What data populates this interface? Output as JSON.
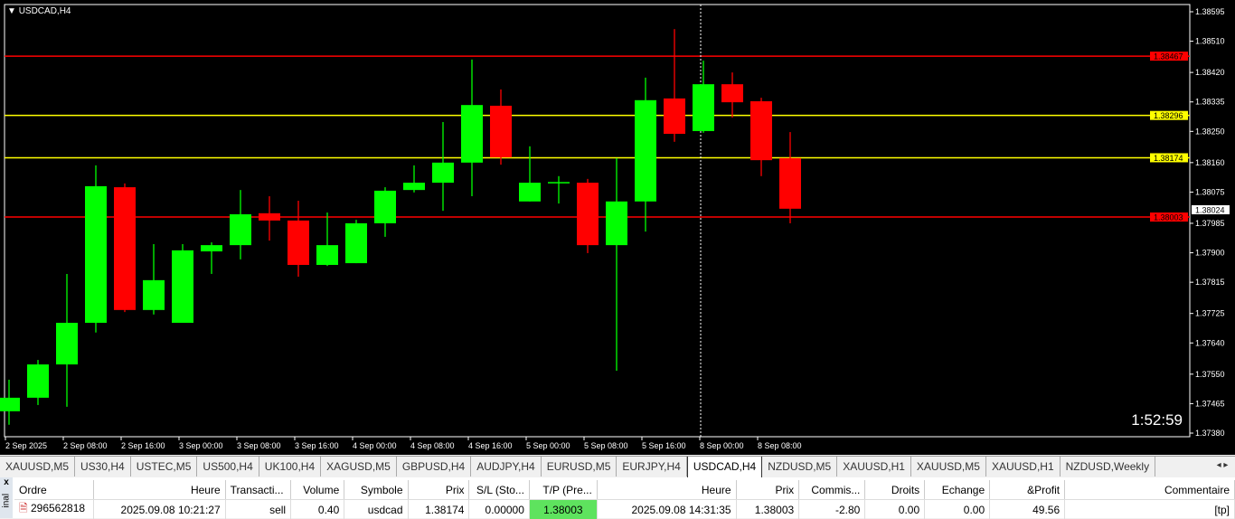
{
  "chart": {
    "title": "USDCAD,H4",
    "timer": "1:52:59",
    "colors": {
      "bull": "#00ff00",
      "bear": "#ff0000",
      "background": "#000000",
      "level_red": "#ff0000",
      "level_yellow": "#ffff00"
    },
    "crosshair_time": "8 Sep 00:00"
  },
  "chart_data": {
    "type": "candlestick",
    "symbol": "USDCAD",
    "timeframe": "H4",
    "ylim": [
      1.3738,
      1.38595
    ],
    "yticks": [
      "1.38595",
      "1.38510",
      "1.38420",
      "1.38335",
      "1.38250",
      "1.38160",
      "1.38075",
      "1.37985",
      "1.37900",
      "1.37815",
      "1.37725",
      "1.37640",
      "1.37550",
      "1.37465",
      "1.37380"
    ],
    "xticks": [
      "2 Sep 2025",
      "2 Sep 08:00",
      "2 Sep 16:00",
      "3 Sep 00:00",
      "3 Sep 08:00",
      "3 Sep 16:00",
      "4 Sep 00:00",
      "4 Sep 08:00",
      "4 Sep 16:00",
      "5 Sep 00:00",
      "5 Sep 08:00",
      "5 Sep 16:00",
      "8 Sep 00:00",
      "8 Sep 08:00"
    ],
    "candles": [
      {
        "o": 1.37443,
        "h": 1.37534,
        "l": 1.37404,
        "c": 1.37482
      },
      {
        "o": 1.37482,
        "h": 1.37591,
        "l": 1.37461,
        "c": 1.37578
      },
      {
        "o": 1.37578,
        "h": 1.37839,
        "l": 1.37456,
        "c": 1.37698
      },
      {
        "o": 1.37698,
        "h": 1.38152,
        "l": 1.3767,
        "c": 1.38092
      },
      {
        "o": 1.38089,
        "h": 1.381,
        "l": 1.37729,
        "c": 1.37735
      },
      {
        "o": 1.37735,
        "h": 1.37925,
        "l": 1.37722,
        "c": 1.37821
      },
      {
        "o": 1.37698,
        "h": 1.37925,
        "l": 1.37698,
        "c": 1.37907
      },
      {
        "o": 1.37904,
        "h": 1.3793,
        "l": 1.37839,
        "c": 1.37922
      },
      {
        "o": 1.37922,
        "h": 1.38081,
        "l": 1.37881,
        "c": 1.38011
      },
      {
        "o": 1.38014,
        "h": 1.38063,
        "l": 1.37935,
        "c": 1.37993
      },
      {
        "o": 1.37993,
        "h": 1.3805,
        "l": 1.37831,
        "c": 1.37865
      },
      {
        "o": 1.37865,
        "h": 1.38016,
        "l": 1.37862,
        "c": 1.37922
      },
      {
        "o": 1.3787,
        "h": 1.37995,
        "l": 1.3787,
        "c": 1.37985
      },
      {
        "o": 1.37985,
        "h": 1.38089,
        "l": 1.37946,
        "c": 1.38079
      },
      {
        "o": 1.38081,
        "h": 1.38152,
        "l": 1.38074,
        "c": 1.38102
      },
      {
        "o": 1.38102,
        "h": 1.38277,
        "l": 1.38021,
        "c": 1.3816
      },
      {
        "o": 1.3816,
        "h": 1.38457,
        "l": 1.38063,
        "c": 1.38326
      },
      {
        "o": 1.38324,
        "h": 1.38371,
        "l": 1.38154,
        "c": 1.38175
      },
      {
        "o": 1.38048,
        "h": 1.38207,
        "l": 1.38048,
        "c": 1.38102
      },
      {
        "o": 1.38102,
        "h": 1.38121,
        "l": 1.38042,
        "c": 1.38104
      },
      {
        "o": 1.38102,
        "h": 1.38113,
        "l": 1.37899,
        "c": 1.37922
      },
      {
        "o": 1.37922,
        "h": 1.38173,
        "l": 1.3756,
        "c": 1.38048
      },
      {
        "o": 1.38048,
        "h": 1.38405,
        "l": 1.37961,
        "c": 1.3834
      },
      {
        "o": 1.38345,
        "h": 1.38545,
        "l": 1.3822,
        "c": 1.38243
      },
      {
        "o": 1.38251,
        "h": 1.38454,
        "l": 1.38246,
        "c": 1.38386
      },
      {
        "o": 1.38386,
        "h": 1.3842,
        "l": 1.3829,
        "c": 1.38334
      },
      {
        "o": 1.38337,
        "h": 1.38347,
        "l": 1.38121,
        "c": 1.38167
      },
      {
        "o": 1.38173,
        "h": 1.38248,
        "l": 1.37985,
        "c": 1.38027
      }
    ],
    "levels": [
      {
        "price": "1.38467",
        "color": "#ff0000"
      },
      {
        "price": "1.38296",
        "color": "#ffff00"
      },
      {
        "price": "1.38174",
        "color": "#ffff00"
      },
      {
        "price": "1.38003",
        "color": "#ff0000"
      }
    ],
    "current_price": "1.38024"
  },
  "tabs": [
    "XAUUSD,M5",
    "US30,H4",
    "USTEC,M5",
    "US500,H4",
    "UK100,H4",
    "XAGUSD,M5",
    "GBPUSD,H4",
    "AUDJPY,H4",
    "EURUSD,M5",
    "EURJPY,H4",
    "USDCAD,H4",
    "NZDUSD,M5",
    "XAUUSD,H1",
    "XAUUSD,M5",
    "XAUUSD,H1",
    "NZDUSD,Weekly"
  ],
  "active_tab": "USDCAD,H4",
  "terminal": {
    "side_label": "inal",
    "close": "x",
    "columns": [
      "Ordre",
      "Heure",
      "Transacti...",
      "Volume",
      "Symbole",
      "Prix",
      "S/L (Sto...",
      "T/P (Pre...",
      "Heure",
      "Prix",
      "Commis...",
      "Droits",
      "Echange",
      "&Profit",
      "Commentaire"
    ],
    "rows": [
      [
        "296562818",
        "2025.09.08 10:21:27",
        "sell",
        "0.40",
        "usdcad",
        "1.38174",
        "0.00000",
        "1.38003",
        "2025.09.08 14:31:35",
        "1.38003",
        "-2.80",
        "0.00",
        "0.00",
        "49.56",
        "[tp]"
      ]
    ]
  }
}
